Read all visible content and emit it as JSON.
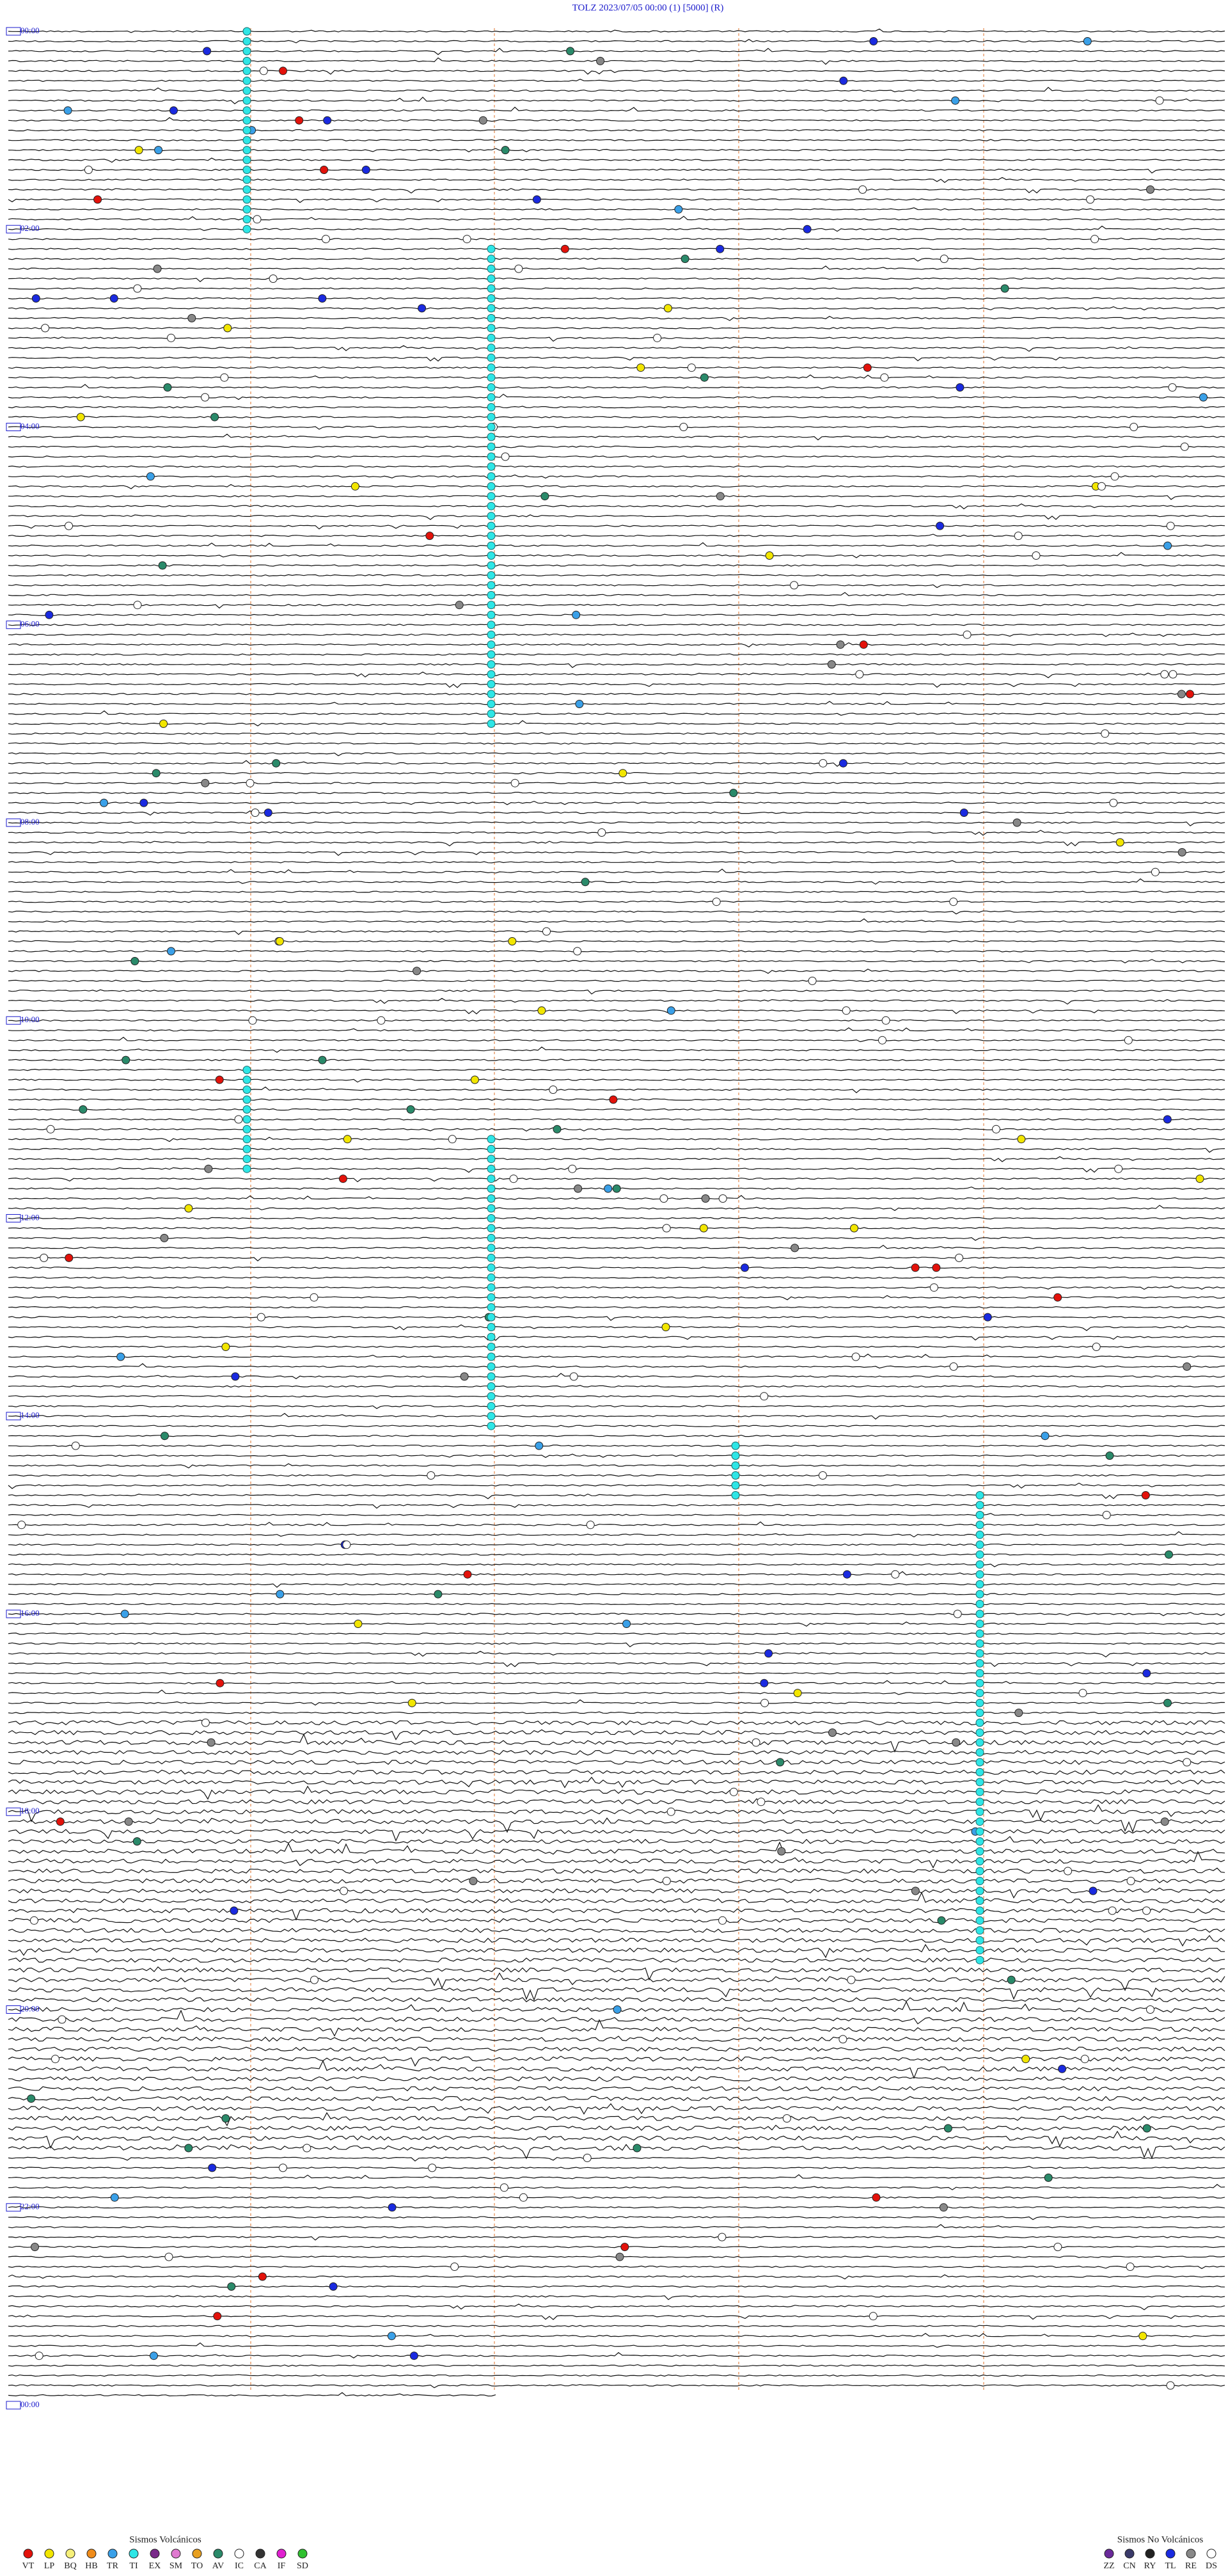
{
  "header": {
    "title": "TOLZ    2023/07/05 00:00     (1)     [5000]   (R)"
  },
  "hour_labels": [
    "00:00",
    "02:00",
    "04:00",
    "06:00",
    "08:00",
    "10:00",
    "12:00",
    "14:00",
    "16:00",
    "18:00",
    "20:00",
    "22:00",
    "00:00"
  ],
  "legend": {
    "volcanic": {
      "title": "Sismos Volcánicos",
      "items": [
        {
          "code": "VT",
          "color": "#e3120b"
        },
        {
          "code": "LP",
          "color": "#f2e600"
        },
        {
          "code": "BQ",
          "color": "#f6f07a"
        },
        {
          "code": "HB",
          "color": "#f08c1a"
        },
        {
          "code": "TR",
          "color": "#3aa0e8"
        },
        {
          "code": "TI",
          "color": "#2ee6e6"
        },
        {
          "code": "EX",
          "color": "#7a2a8a"
        },
        {
          "code": "SM",
          "color": "#e07ad0"
        },
        {
          "code": "TO",
          "color": "#e8a020"
        },
        {
          "code": "AV",
          "color": "#2a8a6a"
        },
        {
          "code": "IC",
          "color": "#ffffff"
        },
        {
          "code": "CA",
          "color": "#333333"
        },
        {
          "code": "IF",
          "color": "#e020d0"
        },
        {
          "code": "SD",
          "color": "#30c030"
        }
      ]
    },
    "non_volcanic": {
      "title": "Sismos No Volcánicos",
      "items": [
        {
          "code": "ZZ",
          "color": "#6a2a9a"
        },
        {
          "code": "CN",
          "color": "#3a3a6a"
        },
        {
          "code": "RY",
          "color": "#222222"
        },
        {
          "code": "TL",
          "color": "#1a2ae0"
        },
        {
          "code": "RE",
          "color": "#888888"
        },
        {
          "code": "DS",
          "color": "#ffffff"
        }
      ]
    }
  }
}
